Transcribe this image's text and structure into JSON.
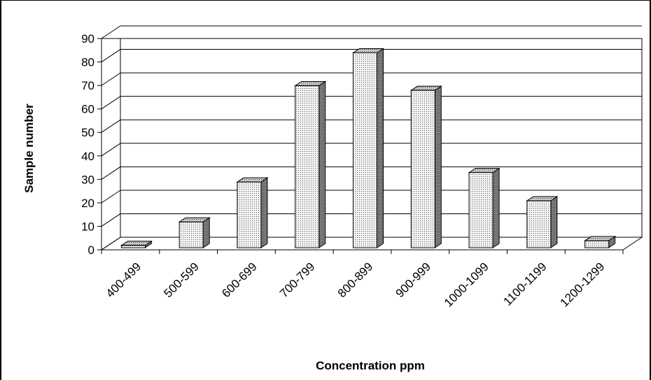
{
  "chart_data": {
    "type": "bar",
    "style": "3d-column",
    "categories": [
      "400-499",
      "500-599",
      "600-699",
      "700-799",
      "800-899",
      "900-999",
      "1000-1099",
      "1100-1199",
      "1200-1299"
    ],
    "values": [
      1,
      11,
      28,
      69,
      83,
      67,
      32,
      20,
      3
    ],
    "xlabel": "Concentration ppm",
    "ylabel": "Sample number",
    "ylim": [
      0,
      90
    ],
    "yticks": [
      0,
      10,
      20,
      30,
      40,
      50,
      60,
      70,
      80,
      90
    ],
    "grid": true,
    "legend": "none",
    "colors": {
      "bar_front": "#e6e6e6",
      "bar_side": "#7f7f7f",
      "bar_top": "#bdbdbd",
      "grid": "#000000",
      "background": "#ffffff"
    }
  }
}
